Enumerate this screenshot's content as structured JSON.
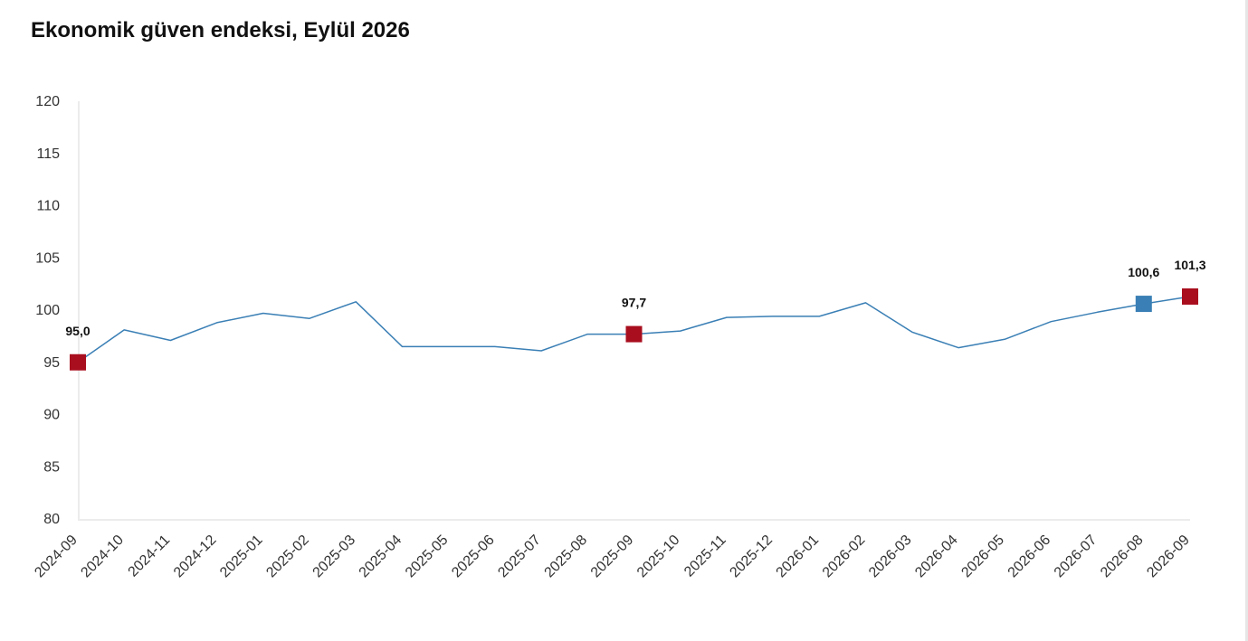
{
  "chart_data": {
    "type": "line",
    "title": "Ekonomik güven endeksi, Eylül 2026",
    "xlabel": "",
    "ylabel": "",
    "ylim": [
      80,
      120
    ],
    "yticks": [
      80,
      85,
      90,
      95,
      100,
      105,
      110,
      115,
      120
    ],
    "grid": false,
    "categories": [
      "2024-09",
      "2024-10",
      "2024-11",
      "2024-12",
      "2025-01",
      "2025-02",
      "2025-03",
      "2025-04",
      "2025-05",
      "2025-06",
      "2025-07",
      "2025-08",
      "2025-09",
      "2025-10",
      "2025-11",
      "2025-12",
      "2026-01",
      "2026-02",
      "2026-03",
      "2026-04",
      "2026-05",
      "2026-06",
      "2026-07",
      "2026-08",
      "2026-09"
    ],
    "series": [
      {
        "values": [
          95.0,
          98.1,
          97.1,
          98.8,
          99.7,
          99.2,
          100.8,
          96.5,
          96.5,
          96.5,
          96.1,
          97.7,
          97.7,
          98.0,
          99.3,
          99.4,
          99.4,
          100.7,
          97.9,
          96.4,
          97.2,
          98.9,
          99.8,
          100.6,
          101.3
        ],
        "color": "#3a7fb5"
      }
    ],
    "highlights": [
      {
        "category": "2024-09",
        "value": 95.0,
        "label": "95,0",
        "color": "#a80e1e"
      },
      {
        "category": "2025-09",
        "value": 97.7,
        "label": "97,7",
        "color": "#a80e1e"
      },
      {
        "category": "2026-08",
        "value": 100.6,
        "label": "100,6",
        "color": "#3a7fb5"
      },
      {
        "category": "2026-09",
        "value": 101.3,
        "label": "101,3",
        "color": "#a80e1e"
      }
    ]
  }
}
